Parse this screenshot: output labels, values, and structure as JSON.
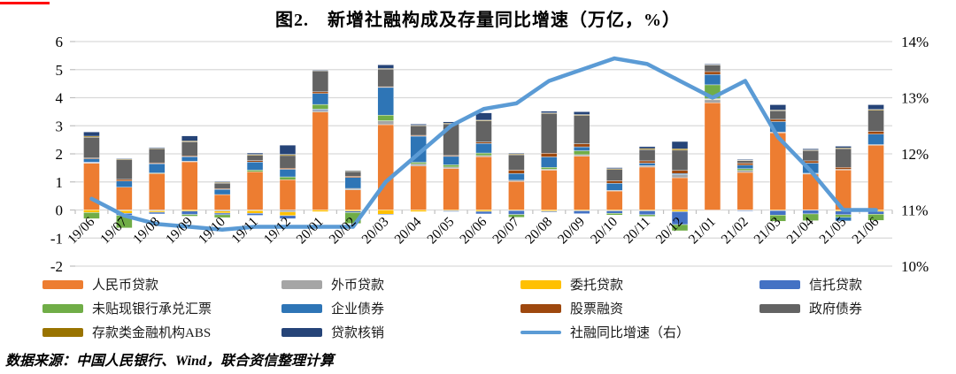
{
  "title": "图2.　新增社融构成及存量同比增速（万亿，%）",
  "source_note": "数据来源：中国人民银行、Wind，联合资信整理计算",
  "decor": {
    "red_mark_color": "#ff0000"
  },
  "chart_data": {
    "type": "bar",
    "subtype": "stacked-bar-with-line",
    "title": "图2.　新增社融构成及存量同比增速（万亿，%）",
    "grid": "horizontal-on",
    "legend_position": "bottom",
    "left_axis": {
      "min": -2,
      "max": 6,
      "ticks": [
        "6",
        "5",
        "4",
        "3",
        "2",
        "1",
        "0",
        "-1",
        "-2"
      ]
    },
    "right_axis": {
      "min": 10,
      "max": 14,
      "ticks": [
        "14%",
        "13%",
        "12%",
        "11%",
        "10%"
      ]
    },
    "categories": [
      "19/06",
      "19/07",
      "19/08",
      "19/09",
      "19/10",
      "19/11",
      "19/12",
      "20/01",
      "20/02",
      "20/03",
      "20/04",
      "20/05",
      "20/06",
      "20/07",
      "20/08",
      "20/09",
      "20/10",
      "20/11",
      "20/12",
      "21/01",
      "21/02",
      "21/03",
      "21/04",
      "21/05",
      "21/06"
    ],
    "series": [
      {
        "name": "人民币贷款",
        "color": "#ED7D31",
        "values": [
          1.67,
          0.81,
          1.3,
          1.72,
          0.55,
          1.36,
          1.08,
          3.49,
          0.72,
          3.04,
          1.57,
          1.48,
          1.9,
          1.02,
          1.42,
          1.92,
          0.68,
          1.53,
          1.15,
          3.82,
          1.34,
          2.75,
          1.28,
          1.43,
          2.32
        ]
      },
      {
        "name": "外币贷款",
        "color": "#A5A5A5",
        "values": [
          0.02,
          -0.02,
          -0.03,
          0.02,
          -0.04,
          -0.02,
          -0.07,
          0.06,
          0.05,
          0.14,
          0.07,
          0.05,
          0.04,
          0.04,
          0.03,
          0.05,
          0.02,
          0.05,
          0.11,
          0.12,
          0.07,
          0.03,
          0.03,
          0.02,
          0.01
        ]
      },
      {
        "name": "委托贷款",
        "color": "#FFC000",
        "values": [
          -0.09,
          -0.1,
          -0.05,
          -0.04,
          -0.07,
          -0.1,
          -0.13,
          -0.06,
          -0.04,
          -0.15,
          -0.06,
          -0.03,
          -0.05,
          -0.02,
          -0.04,
          -0.03,
          -0.03,
          -0.03,
          -0.06,
          0.01,
          -0.01,
          -0.02,
          -0.01,
          -0.04,
          -0.05
        ]
      },
      {
        "name": "信托贷款",
        "color": "#4472C4",
        "values": [
          0.02,
          -0.07,
          -0.06,
          -0.12,
          -0.06,
          -0.07,
          -0.11,
          0.04,
          -0.05,
          -0.02,
          0.0,
          -0.03,
          -0.09,
          -0.14,
          -0.03,
          -0.1,
          -0.09,
          -0.14,
          -0.46,
          0.02,
          -0.02,
          -0.16,
          -0.13,
          -0.13,
          -0.1
        ]
      },
      {
        "name": "未贴现银行承兑汇票",
        "color": "#70AD47",
        "values": [
          -0.22,
          -0.45,
          0.02,
          -0.06,
          -0.1,
          0.06,
          0.1,
          0.17,
          -0.39,
          0.2,
          0.06,
          0.08,
          0.09,
          -0.1,
          0.07,
          0.14,
          -0.06,
          -0.06,
          -0.22,
          0.49,
          0.06,
          -0.22,
          -0.24,
          -0.09,
          -0.22
        ]
      },
      {
        "name": "企业债券",
        "color": "#2E75B6",
        "values": [
          0.12,
          0.22,
          0.33,
          0.16,
          0.19,
          0.29,
          0.27,
          0.39,
          0.39,
          0.99,
          0.93,
          0.3,
          0.34,
          0.24,
          0.37,
          0.14,
          0.25,
          0.09,
          0.04,
          0.37,
          0.13,
          0.37,
          0.36,
          -0.13,
          0.37
        ]
      },
      {
        "name": "股票融资",
        "color": "#9E480E",
        "values": [
          0.02,
          0.06,
          0.03,
          0.03,
          0.02,
          0.05,
          0.04,
          0.06,
          0.04,
          0.02,
          0.03,
          0.03,
          0.05,
          0.12,
          0.13,
          0.11,
          0.09,
          0.08,
          0.11,
          0.1,
          0.07,
          0.08,
          0.08,
          0.07,
          0.1
        ]
      },
      {
        "name": "政府债券",
        "color": "#636363",
        "values": [
          0.74,
          0.71,
          0.5,
          0.5,
          0.2,
          0.19,
          0.45,
          0.76,
          0.18,
          0.64,
          0.35,
          1.14,
          0.76,
          0.55,
          1.42,
          1.01,
          0.41,
          0.4,
          0.72,
          0.24,
          0.1,
          0.31,
          0.37,
          0.67,
          0.75
        ]
      },
      {
        "name": "存款类金融机构ABS",
        "color": "#997300",
        "values": [
          0.04,
          0.02,
          0.02,
          0.03,
          0.02,
          0.03,
          0.04,
          0.01,
          0.01,
          0.01,
          0.01,
          0.01,
          0.02,
          0.02,
          0.02,
          0.03,
          0.02,
          0.04,
          0.05,
          0.02,
          0.01,
          0.02,
          0.02,
          0.02,
          0.03
        ]
      },
      {
        "name": "贷款核销",
        "color": "#264478",
        "values": [
          0.15,
          0.02,
          0.03,
          0.18,
          0.03,
          0.05,
          0.33,
          0.01,
          0.02,
          0.13,
          0.04,
          0.05,
          0.26,
          0.03,
          0.06,
          0.1,
          0.04,
          0.07,
          0.26,
          0.01,
          0.02,
          0.19,
          0.04,
          0.06,
          0.17
        ]
      }
    ],
    "line_series": {
      "name": "社融同比增速（右）",
      "color": "#5B9BD5",
      "axis": "right",
      "values": [
        11.2,
        10.9,
        10.75,
        10.7,
        10.65,
        10.7,
        10.7,
        10.7,
        10.7,
        11.5,
        12.0,
        12.5,
        12.8,
        12.9,
        13.3,
        13.5,
        13.7,
        13.6,
        13.3,
        13.0,
        13.3,
        12.3,
        11.7,
        11.0,
        11.0
      ]
    },
    "colors": {
      "gridline": "#D9D9D9",
      "axis": "#BFBFBF",
      "text": "#000000"
    }
  }
}
